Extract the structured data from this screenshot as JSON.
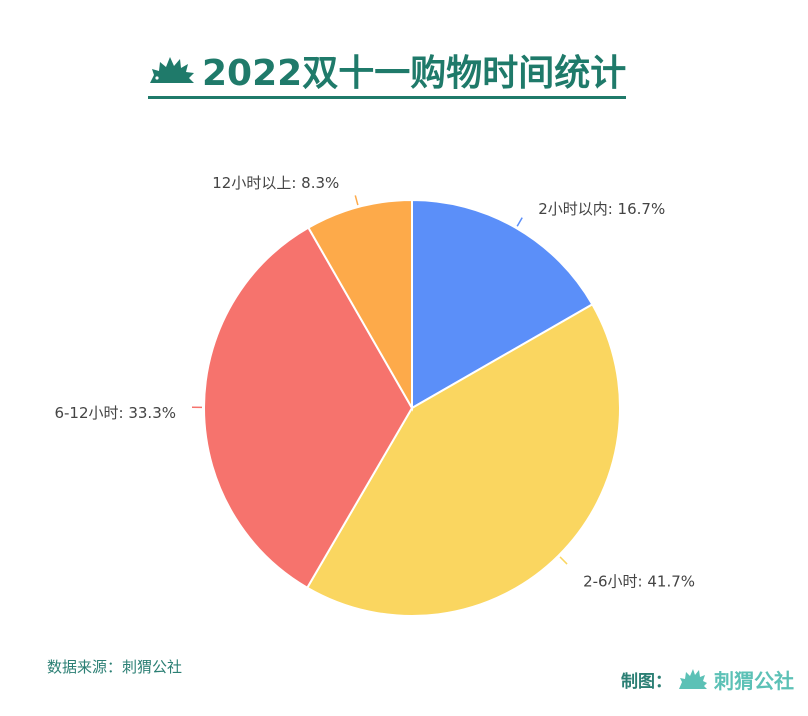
{
  "header": {
    "title": "2022双十一购物时间统计",
    "logo_icon": "hedgehog-icon"
  },
  "footer": {
    "source": "数据来源：刺猬公社",
    "credit_label": "制图：",
    "credit_brand": "刺猬公社"
  },
  "colors": {
    "title": "#1f7a6a",
    "footer": "#2b7f74",
    "brand": "#5cc1b6"
  },
  "chart_data": {
    "type": "pie",
    "title": "2022双十一购物时间统计",
    "slices": [
      {
        "name": "2小时以内",
        "value": 16.7,
        "label": "2小时以内: 16.7%",
        "color": "#5b8ff9"
      },
      {
        "name": "2-6小时",
        "value": 41.7,
        "label": "2-6小时: 41.7%",
        "color": "#fad660"
      },
      {
        "name": "6-12小时",
        "value": 33.3,
        "label": "6-12小时: 33.3%",
        "color": "#f6736d"
      },
      {
        "name": "12小时以上",
        "value": 8.3,
        "label": "12小时以上: 8.3%",
        "color": "#fdaa4a"
      }
    ],
    "start_angle": "12 o'clock",
    "direction": "clockwise",
    "legend": "none"
  }
}
